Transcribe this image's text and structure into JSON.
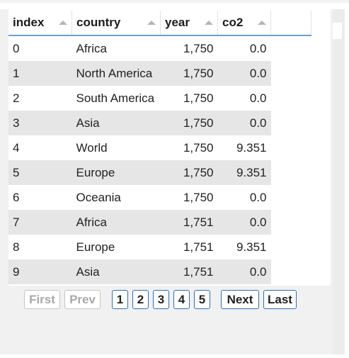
{
  "table": {
    "columns": [
      "index",
      "country",
      "year",
      "co2"
    ],
    "rows": [
      [
        "0",
        "Africa",
        "1,750",
        "0.0"
      ],
      [
        "1",
        "North America",
        "1,750",
        "0.0"
      ],
      [
        "2",
        "South America",
        "1,750",
        "0.0"
      ],
      [
        "3",
        "Asia",
        "1,750",
        "0.0"
      ],
      [
        "4",
        "World",
        "1,750",
        "9.351"
      ],
      [
        "5",
        "Europe",
        "1,750",
        "9.351"
      ],
      [
        "6",
        "Oceania",
        "1,750",
        "0.0"
      ],
      [
        "7",
        "Africa",
        "1,751",
        "0.0"
      ],
      [
        "8",
        "Europe",
        "1,751",
        "9.351"
      ],
      [
        "9",
        "Asia",
        "1,751",
        "0.0"
      ]
    ]
  },
  "pager": {
    "first": "First",
    "prev": "Prev",
    "pages": [
      "1",
      "2",
      "3",
      "4",
      "5"
    ],
    "next": "Next",
    "last": "Last"
  },
  "icons": {
    "sort": "sort-triangle-icon"
  },
  "colors": {
    "header_underline": "#6a9fd6",
    "row_alt": "#e6e6e6",
    "button_border": "#2f6fb5"
  }
}
